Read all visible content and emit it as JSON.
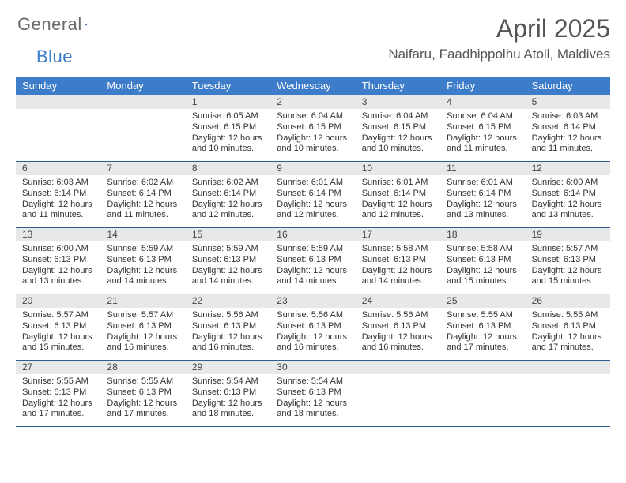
{
  "brand": {
    "text1": "General",
    "text2": "Blue"
  },
  "title": "April 2025",
  "location": "Naifaru, Faadhippolhu Atoll, Maldives",
  "colors": {
    "header_bg": "#3d7cc9",
    "header_text": "#ffffff",
    "date_strip_bg": "#e8e8e8",
    "row_border": "#2f5f92",
    "body_text": "#333333",
    "brand_gray": "#6a6a6a",
    "brand_blue": "#3d7cc9"
  },
  "dayHeaders": [
    "Sunday",
    "Monday",
    "Tuesday",
    "Wednesday",
    "Thursday",
    "Friday",
    "Saturday"
  ],
  "weeks": [
    [
      {
        "date": "",
        "sunrise": "",
        "sunset": "",
        "daylight1": "",
        "daylight2": ""
      },
      {
        "date": "",
        "sunrise": "",
        "sunset": "",
        "daylight1": "",
        "daylight2": ""
      },
      {
        "date": "1",
        "sunrise": "Sunrise: 6:05 AM",
        "sunset": "Sunset: 6:15 PM",
        "daylight1": "Daylight: 12 hours",
        "daylight2": "and 10 minutes."
      },
      {
        "date": "2",
        "sunrise": "Sunrise: 6:04 AM",
        "sunset": "Sunset: 6:15 PM",
        "daylight1": "Daylight: 12 hours",
        "daylight2": "and 10 minutes."
      },
      {
        "date": "3",
        "sunrise": "Sunrise: 6:04 AM",
        "sunset": "Sunset: 6:15 PM",
        "daylight1": "Daylight: 12 hours",
        "daylight2": "and 10 minutes."
      },
      {
        "date": "4",
        "sunrise": "Sunrise: 6:04 AM",
        "sunset": "Sunset: 6:15 PM",
        "daylight1": "Daylight: 12 hours",
        "daylight2": "and 11 minutes."
      },
      {
        "date": "5",
        "sunrise": "Sunrise: 6:03 AM",
        "sunset": "Sunset: 6:14 PM",
        "daylight1": "Daylight: 12 hours",
        "daylight2": "and 11 minutes."
      }
    ],
    [
      {
        "date": "6",
        "sunrise": "Sunrise: 6:03 AM",
        "sunset": "Sunset: 6:14 PM",
        "daylight1": "Daylight: 12 hours",
        "daylight2": "and 11 minutes."
      },
      {
        "date": "7",
        "sunrise": "Sunrise: 6:02 AM",
        "sunset": "Sunset: 6:14 PM",
        "daylight1": "Daylight: 12 hours",
        "daylight2": "and 11 minutes."
      },
      {
        "date": "8",
        "sunrise": "Sunrise: 6:02 AM",
        "sunset": "Sunset: 6:14 PM",
        "daylight1": "Daylight: 12 hours",
        "daylight2": "and 12 minutes."
      },
      {
        "date": "9",
        "sunrise": "Sunrise: 6:01 AM",
        "sunset": "Sunset: 6:14 PM",
        "daylight1": "Daylight: 12 hours",
        "daylight2": "and 12 minutes."
      },
      {
        "date": "10",
        "sunrise": "Sunrise: 6:01 AM",
        "sunset": "Sunset: 6:14 PM",
        "daylight1": "Daylight: 12 hours",
        "daylight2": "and 12 minutes."
      },
      {
        "date": "11",
        "sunrise": "Sunrise: 6:01 AM",
        "sunset": "Sunset: 6:14 PM",
        "daylight1": "Daylight: 12 hours",
        "daylight2": "and 13 minutes."
      },
      {
        "date": "12",
        "sunrise": "Sunrise: 6:00 AM",
        "sunset": "Sunset: 6:14 PM",
        "daylight1": "Daylight: 12 hours",
        "daylight2": "and 13 minutes."
      }
    ],
    [
      {
        "date": "13",
        "sunrise": "Sunrise: 6:00 AM",
        "sunset": "Sunset: 6:13 PM",
        "daylight1": "Daylight: 12 hours",
        "daylight2": "and 13 minutes."
      },
      {
        "date": "14",
        "sunrise": "Sunrise: 5:59 AM",
        "sunset": "Sunset: 6:13 PM",
        "daylight1": "Daylight: 12 hours",
        "daylight2": "and 14 minutes."
      },
      {
        "date": "15",
        "sunrise": "Sunrise: 5:59 AM",
        "sunset": "Sunset: 6:13 PM",
        "daylight1": "Daylight: 12 hours",
        "daylight2": "and 14 minutes."
      },
      {
        "date": "16",
        "sunrise": "Sunrise: 5:59 AM",
        "sunset": "Sunset: 6:13 PM",
        "daylight1": "Daylight: 12 hours",
        "daylight2": "and 14 minutes."
      },
      {
        "date": "17",
        "sunrise": "Sunrise: 5:58 AM",
        "sunset": "Sunset: 6:13 PM",
        "daylight1": "Daylight: 12 hours",
        "daylight2": "and 14 minutes."
      },
      {
        "date": "18",
        "sunrise": "Sunrise: 5:58 AM",
        "sunset": "Sunset: 6:13 PM",
        "daylight1": "Daylight: 12 hours",
        "daylight2": "and 15 minutes."
      },
      {
        "date": "19",
        "sunrise": "Sunrise: 5:57 AM",
        "sunset": "Sunset: 6:13 PM",
        "daylight1": "Daylight: 12 hours",
        "daylight2": "and 15 minutes."
      }
    ],
    [
      {
        "date": "20",
        "sunrise": "Sunrise: 5:57 AM",
        "sunset": "Sunset: 6:13 PM",
        "daylight1": "Daylight: 12 hours",
        "daylight2": "and 15 minutes."
      },
      {
        "date": "21",
        "sunrise": "Sunrise: 5:57 AM",
        "sunset": "Sunset: 6:13 PM",
        "daylight1": "Daylight: 12 hours",
        "daylight2": "and 16 minutes."
      },
      {
        "date": "22",
        "sunrise": "Sunrise: 5:56 AM",
        "sunset": "Sunset: 6:13 PM",
        "daylight1": "Daylight: 12 hours",
        "daylight2": "and 16 minutes."
      },
      {
        "date": "23",
        "sunrise": "Sunrise: 5:56 AM",
        "sunset": "Sunset: 6:13 PM",
        "daylight1": "Daylight: 12 hours",
        "daylight2": "and 16 minutes."
      },
      {
        "date": "24",
        "sunrise": "Sunrise: 5:56 AM",
        "sunset": "Sunset: 6:13 PM",
        "daylight1": "Daylight: 12 hours",
        "daylight2": "and 16 minutes."
      },
      {
        "date": "25",
        "sunrise": "Sunrise: 5:55 AM",
        "sunset": "Sunset: 6:13 PM",
        "daylight1": "Daylight: 12 hours",
        "daylight2": "and 17 minutes."
      },
      {
        "date": "26",
        "sunrise": "Sunrise: 5:55 AM",
        "sunset": "Sunset: 6:13 PM",
        "daylight1": "Daylight: 12 hours",
        "daylight2": "and 17 minutes."
      }
    ],
    [
      {
        "date": "27",
        "sunrise": "Sunrise: 5:55 AM",
        "sunset": "Sunset: 6:13 PM",
        "daylight1": "Daylight: 12 hours",
        "daylight2": "and 17 minutes."
      },
      {
        "date": "28",
        "sunrise": "Sunrise: 5:55 AM",
        "sunset": "Sunset: 6:13 PM",
        "daylight1": "Daylight: 12 hours",
        "daylight2": "and 17 minutes."
      },
      {
        "date": "29",
        "sunrise": "Sunrise: 5:54 AM",
        "sunset": "Sunset: 6:13 PM",
        "daylight1": "Daylight: 12 hours",
        "daylight2": "and 18 minutes."
      },
      {
        "date": "30",
        "sunrise": "Sunrise: 5:54 AM",
        "sunset": "Sunset: 6:13 PM",
        "daylight1": "Daylight: 12 hours",
        "daylight2": "and 18 minutes."
      },
      {
        "date": "",
        "sunrise": "",
        "sunset": "",
        "daylight1": "",
        "daylight2": ""
      },
      {
        "date": "",
        "sunrise": "",
        "sunset": "",
        "daylight1": "",
        "daylight2": ""
      },
      {
        "date": "",
        "sunrise": "",
        "sunset": "",
        "daylight1": "",
        "daylight2": ""
      }
    ]
  ]
}
